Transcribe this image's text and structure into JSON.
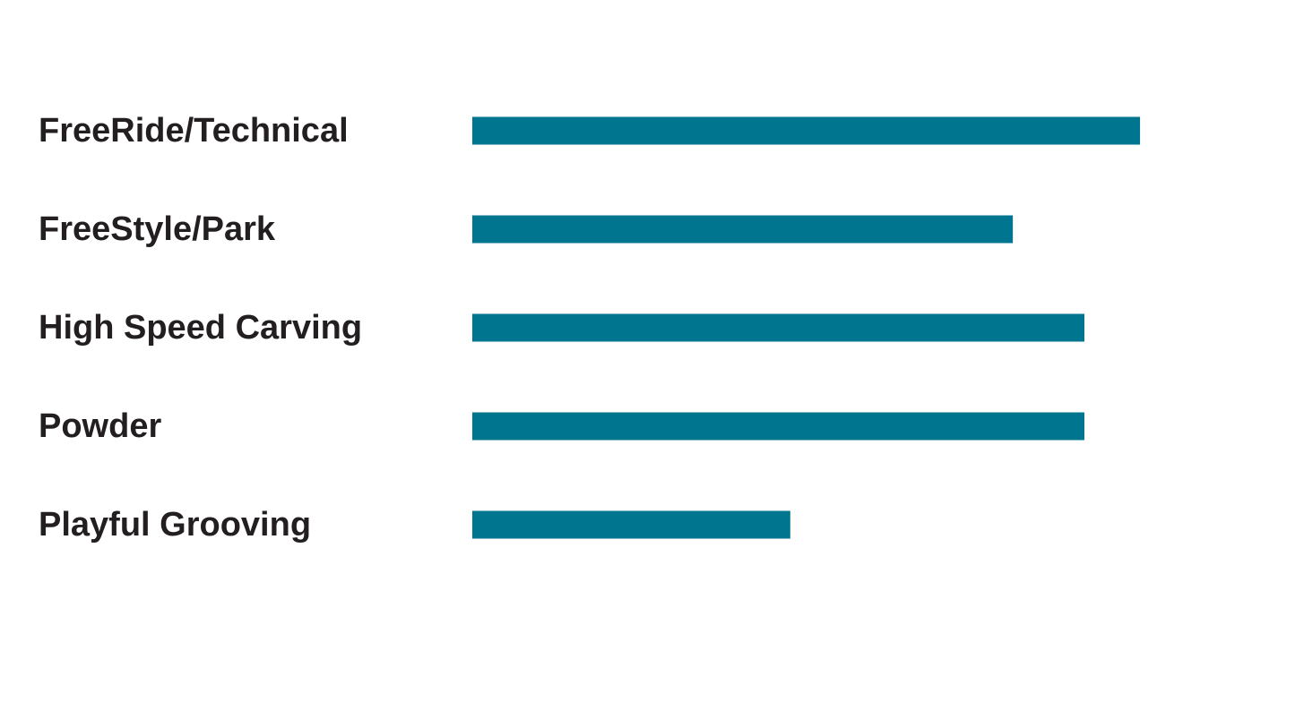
{
  "chart_data": {
    "type": "bar",
    "orientation": "horizontal",
    "categories": [
      "FreeRide/Technical",
      "FreeStyle/Park",
      "High Speed Carving",
      "Powder",
      "Playful Grooving"
    ],
    "values": [
      8.4,
      6.8,
      7.7,
      7.7,
      4.0
    ],
    "color": "#00758f",
    "xlim": [
      0,
      10
    ]
  }
}
